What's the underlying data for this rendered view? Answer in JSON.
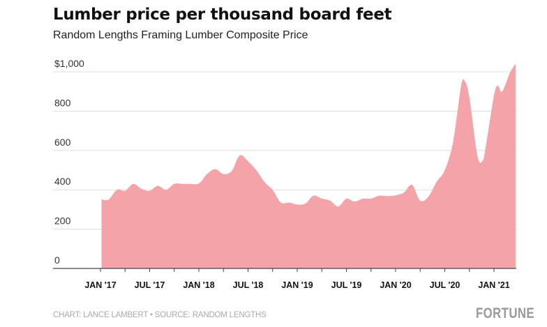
{
  "title": "Lumber price per thousand board feet",
  "subtitle": "Random Lengths Framing Lumber Composite Price",
  "footer": "CHART: LANCE LAMBERT • SOURCE: RANDOM LENGTHS",
  "logo": "FORTUNE",
  "chart_data": {
    "type": "area",
    "title": "Lumber price per thousand board feet",
    "subtitle": "Random Lengths Framing Lumber Composite Price",
    "xlabel": "",
    "ylabel": "",
    "ylim": [
      0,
      1000
    ],
    "xlim": [
      "2016-11-15",
      "2021-04-01"
    ],
    "grid": true,
    "color": "#f4a3a8",
    "y_ticks": [
      {
        "value": 0,
        "label": "0"
      },
      {
        "value": 200,
        "label": "200"
      },
      {
        "value": 400,
        "label": "400"
      },
      {
        "value": 600,
        "label": "600"
      },
      {
        "value": 800,
        "label": "800"
      },
      {
        "value": 1000,
        "label": "$1,000"
      }
    ],
    "x_ticks": [
      {
        "date": "2017-01",
        "label": "JAN '17"
      },
      {
        "date": "2017-07",
        "label": "JUL '17"
      },
      {
        "date": "2018-01",
        "label": "JAN '18"
      },
      {
        "date": "2018-07",
        "label": "JUL '18"
      },
      {
        "date": "2019-01",
        "label": "JAN '19"
      },
      {
        "date": "2019-07",
        "label": "JUL '19"
      },
      {
        "date": "2020-01",
        "label": "JAN '20"
      },
      {
        "date": "2020-07",
        "label": "JUL '20"
      },
      {
        "date": "2021-01",
        "label": "JAN '21"
      }
    ],
    "series": [
      {
        "points": [
          [
            "2017-01-05",
            352
          ],
          [
            "2017-02",
            350
          ],
          [
            "2017-03",
            400
          ],
          [
            "2017-04",
            395
          ],
          [
            "2017-05",
            430
          ],
          [
            "2017-06",
            405
          ],
          [
            "2017-07",
            395
          ],
          [
            "2017-08",
            420
          ],
          [
            "2017-09",
            400
          ],
          [
            "2017-10",
            430
          ],
          [
            "2017-11",
            430
          ],
          [
            "2017-12",
            430
          ],
          [
            "2018-01",
            432
          ],
          [
            "2018-02",
            480
          ],
          [
            "2018-03",
            505
          ],
          [
            "2018-04",
            480
          ],
          [
            "2018-05",
            495
          ],
          [
            "2018-06",
            575
          ],
          [
            "2018-07",
            545
          ],
          [
            "2018-08",
            500
          ],
          [
            "2018-09",
            440
          ],
          [
            "2018-10",
            400
          ],
          [
            "2018-11",
            335
          ],
          [
            "2018-12",
            335
          ],
          [
            "2019-01",
            325
          ],
          [
            "2019-02",
            330
          ],
          [
            "2019-03",
            370
          ],
          [
            "2019-04",
            355
          ],
          [
            "2019-05",
            345
          ],
          [
            "2019-06",
            315
          ],
          [
            "2019-07",
            355
          ],
          [
            "2019-08",
            340
          ],
          [
            "2019-09",
            355
          ],
          [
            "2019-10",
            355
          ],
          [
            "2019-11",
            370
          ],
          [
            "2019-12",
            368
          ],
          [
            "2020-01",
            372
          ],
          [
            "2020-02",
            385
          ],
          [
            "2020-03",
            425
          ],
          [
            "2020-04",
            345
          ],
          [
            "2020-05",
            365
          ],
          [
            "2020-06",
            440
          ],
          [
            "2020-07",
            500
          ],
          [
            "2020-08",
            640
          ],
          [
            "2020-09",
            930
          ],
          [
            "2020-09-15",
            950
          ],
          [
            "2020-10",
            870
          ],
          [
            "2020-11",
            570
          ],
          [
            "2020-11-20",
            550
          ],
          [
            "2020-12",
            620
          ],
          [
            "2021-01",
            880
          ],
          [
            "2021-01-15",
            930
          ],
          [
            "2021-02",
            900
          ],
          [
            "2021-03",
            1000
          ],
          [
            "2021-03-20",
            1040
          ]
        ]
      }
    ]
  }
}
